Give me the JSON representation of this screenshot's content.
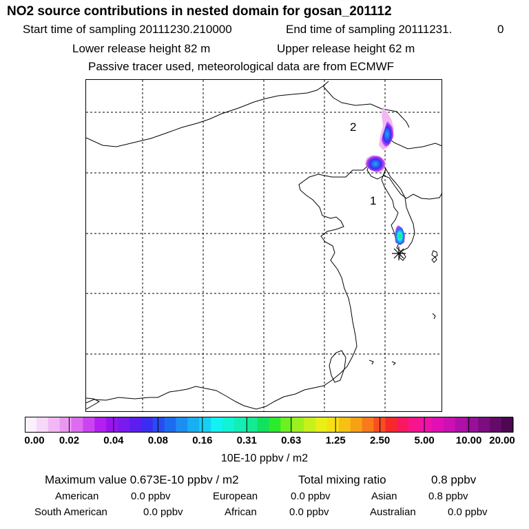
{
  "title": "NO2 source contributions in nested domain for gosan_201112",
  "header": {
    "start_label": "Start time of sampling 20111230.210000",
    "end_label": "End time of sampling 20111231.",
    "end_hour": "0",
    "lower_label": "Lower release height   82 m",
    "upper_label": "Upper release height   62 m",
    "tracer_note": "Passive tracer used, meteorological data are from ECMWF"
  },
  "map": {
    "labels": {
      "region_1": "1",
      "region_2": "2"
    },
    "receptor_icon": "asterisk-icon"
  },
  "colorbar": {
    "ticks": [
      "0.00",
      "0.02",
      "0.04",
      "0.08",
      "0.16",
      "0.31",
      "0.63",
      "1.25",
      "2.50",
      "5.00",
      "10.00",
      "20.00"
    ],
    "colors": [
      "#fdf0fd",
      "#f8d8f8",
      "#f1b8f5",
      "#ea98ef",
      "#dd6cf0",
      "#cc44f2",
      "#b21ff0",
      "#9814ee",
      "#7a1aee",
      "#5c1ef0",
      "#3c2cf2",
      "#2a4af2",
      "#1c6cf0",
      "#1c8ef2",
      "#18b0f2",
      "#16d0f2",
      "#12f2f2",
      "#12f2d4",
      "#12eeb4",
      "#12ea94",
      "#10e260",
      "#2cea2c",
      "#6cf022",
      "#9cf01e",
      "#c8f01a",
      "#e8f016",
      "#f6e014",
      "#f8c012",
      "#f8a014",
      "#f87a1a",
      "#f84e22",
      "#f8282a",
      "#f81860",
      "#f8148c",
      "#f012a8",
      "#e010b4",
      "#cc10b4",
      "#b010a8",
      "#961098",
      "#7c0c80",
      "#640a68",
      "#4c0850"
    ],
    "unit_label": "10E-10 ppbv / m2"
  },
  "summary": {
    "max_value": "Maximum value  0.673E-10 ppbv / m2",
    "total_mixing": "Total mixing ratio",
    "total_value": "0.8 ppbv",
    "american_label": "American",
    "american_value": "0.0 ppbv",
    "european_label": "European",
    "european_value": "0.0 ppbv",
    "asian_label": "Asian",
    "asian_value": "0.8 ppbv",
    "south_american_label": "South American",
    "south_american_value": "0.0 ppbv",
    "african_label": "African",
    "african_value": "0.0 ppbv",
    "australian_label": "Australian",
    "australian_value": "0.0 ppbv"
  }
}
